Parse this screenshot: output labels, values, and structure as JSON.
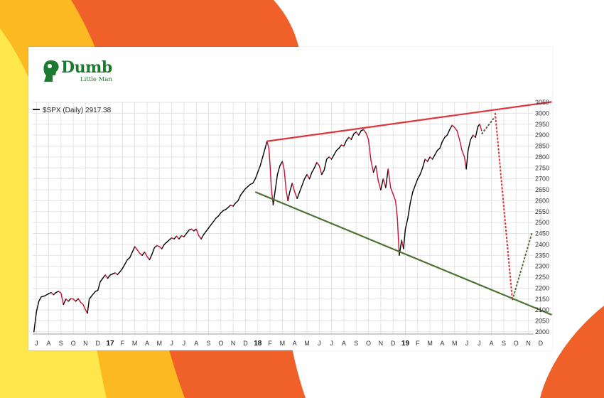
{
  "brand": {
    "name": "Dumb",
    "tagline": "Little Man",
    "color": "#1b7a2f"
  },
  "background_colors": {
    "orange": "#f0612a",
    "yellow": "#fbb922",
    "pale_yellow": "#fde74a"
  },
  "chart_data": {
    "type": "line",
    "legend": "$SPX (Daily) 2917.38",
    "legend_marker_color": "#222222",
    "y_axis": {
      "side": "right",
      "ticks": [
        3050,
        3000,
        2950,
        2900,
        2850,
        2800,
        2750,
        2700,
        2650,
        2600,
        2550,
        2500,
        2450,
        2400,
        2350,
        2300,
        2250,
        2200,
        2150,
        2100,
        2050,
        2000
      ],
      "ylim": [
        1990,
        3050
      ]
    },
    "x_axis": {
      "ticks": [
        {
          "label": "J",
          "t": 0.0,
          "bold": false
        },
        {
          "label": "A",
          "t": 1.0,
          "bold": false
        },
        {
          "label": "S",
          "t": 2.0,
          "bold": false
        },
        {
          "label": "O",
          "t": 3.0,
          "bold": false
        },
        {
          "label": "N",
          "t": 4.0,
          "bold": false
        },
        {
          "label": "D",
          "t": 5.0,
          "bold": false
        },
        {
          "label": "17",
          "t": 6.0,
          "bold": true
        },
        {
          "label": "F",
          "t": 7.0,
          "bold": false
        },
        {
          "label": "M",
          "t": 8.0,
          "bold": false
        },
        {
          "label": "A",
          "t": 9.0,
          "bold": false
        },
        {
          "label": "M",
          "t": 10.0,
          "bold": false
        },
        {
          "label": "J",
          "t": 11.0,
          "bold": false
        },
        {
          "label": "J",
          "t": 12.0,
          "bold": false
        },
        {
          "label": "A",
          "t": 13.0,
          "bold": false
        },
        {
          "label": "S",
          "t": 14.0,
          "bold": false
        },
        {
          "label": "O",
          "t": 15.0,
          "bold": false
        },
        {
          "label": "N",
          "t": 16.0,
          "bold": false
        },
        {
          "label": "D",
          "t": 17.0,
          "bold": false
        },
        {
          "label": "18",
          "t": 18.0,
          "bold": true
        },
        {
          "label": "F",
          "t": 19.0,
          "bold": false
        },
        {
          "label": "M",
          "t": 20.0,
          "bold": false
        },
        {
          "label": "A",
          "t": 21.0,
          "bold": false
        },
        {
          "label": "M",
          "t": 22.0,
          "bold": false
        },
        {
          "label": "J",
          "t": 23.0,
          "bold": false
        },
        {
          "label": "J",
          "t": 24.0,
          "bold": false
        },
        {
          "label": "A",
          "t": 25.0,
          "bold": false
        },
        {
          "label": "S",
          "t": 26.0,
          "bold": false
        },
        {
          "label": "O",
          "t": 27.0,
          "bold": false
        },
        {
          "label": "N",
          "t": 28.0,
          "bold": false
        },
        {
          "label": "D",
          "t": 29.0,
          "bold": false
        },
        {
          "label": "19",
          "t": 30.0,
          "bold": true
        },
        {
          "label": "F",
          "t": 31.0,
          "bold": false
        },
        {
          "label": "M",
          "t": 32.0,
          "bold": false
        },
        {
          "label": "A",
          "t": 33.0,
          "bold": false
        },
        {
          "label": "M",
          "t": 34.0,
          "bold": false
        },
        {
          "label": "J",
          "t": 35.0,
          "bold": false
        },
        {
          "label": "J",
          "t": 36.0,
          "bold": false
        },
        {
          "label": "A",
          "t": 37.0,
          "bold": false
        },
        {
          "label": "S",
          "t": 38.0,
          "bold": false
        },
        {
          "label": "O",
          "t": 39.0,
          "bold": false
        },
        {
          "label": "N",
          "t": 40.0,
          "bold": false
        },
        {
          "label": "D",
          "t": 41.0,
          "bold": false
        }
      ],
      "xlim": [
        -0.3,
        41.7
      ]
    },
    "grid": true,
    "series": [
      {
        "color": "#000000",
        "down_color": "#cc1133",
        "points": [
          [
            -0.2,
            2000
          ],
          [
            0.0,
            2090
          ],
          [
            0.2,
            2140
          ],
          [
            0.4,
            2160
          ],
          [
            0.7,
            2165
          ],
          [
            1.0,
            2175
          ],
          [
            1.2,
            2180
          ],
          [
            1.4,
            2170
          ],
          [
            1.6,
            2180
          ],
          [
            1.8,
            2185
          ],
          [
            2.0,
            2178
          ],
          [
            2.2,
            2125
          ],
          [
            2.4,
            2150
          ],
          [
            2.6,
            2140
          ],
          [
            2.8,
            2152
          ],
          [
            3.0,
            2150
          ],
          [
            3.2,
            2140
          ],
          [
            3.4,
            2152
          ],
          [
            3.6,
            2135
          ],
          [
            3.8,
            2125
          ],
          [
            4.0,
            2100
          ],
          [
            4.15,
            2085
          ],
          [
            4.3,
            2150
          ],
          [
            4.5,
            2165
          ],
          [
            4.8,
            2185
          ],
          [
            5.0,
            2190
          ],
          [
            5.2,
            2230
          ],
          [
            5.4,
            2245
          ],
          [
            5.6,
            2260
          ],
          [
            5.8,
            2245
          ],
          [
            6.0,
            2260
          ],
          [
            6.2,
            2265
          ],
          [
            6.4,
            2270
          ],
          [
            6.6,
            2262
          ],
          [
            6.8,
            2275
          ],
          [
            7.0,
            2290
          ],
          [
            7.2,
            2310
          ],
          [
            7.4,
            2330
          ],
          [
            7.6,
            2340
          ],
          [
            7.8,
            2365
          ],
          [
            8.0,
            2390
          ],
          [
            8.2,
            2375
          ],
          [
            8.4,
            2360
          ],
          [
            8.6,
            2350
          ],
          [
            8.8,
            2365
          ],
          [
            9.0,
            2345
          ],
          [
            9.2,
            2330
          ],
          [
            9.4,
            2355
          ],
          [
            9.6,
            2385
          ],
          [
            9.8,
            2395
          ],
          [
            10.0,
            2390
          ],
          [
            10.2,
            2380
          ],
          [
            10.4,
            2400
          ],
          [
            10.6,
            2410
          ],
          [
            10.8,
            2420
          ],
          [
            11.0,
            2430
          ],
          [
            11.2,
            2425
          ],
          [
            11.4,
            2438
          ],
          [
            11.6,
            2425
          ],
          [
            11.8,
            2440
          ],
          [
            12.0,
            2435
          ],
          [
            12.2,
            2450
          ],
          [
            12.4,
            2465
          ],
          [
            12.6,
            2470
          ],
          [
            12.8,
            2462
          ],
          [
            13.0,
            2470
          ],
          [
            13.2,
            2440
          ],
          [
            13.4,
            2425
          ],
          [
            13.6,
            2445
          ],
          [
            13.8,
            2460
          ],
          [
            14.0,
            2475
          ],
          [
            14.2,
            2490
          ],
          [
            14.4,
            2505
          ],
          [
            14.6,
            2520
          ],
          [
            14.8,
            2530
          ],
          [
            15.0,
            2545
          ],
          [
            15.2,
            2555
          ],
          [
            15.4,
            2560
          ],
          [
            15.6,
            2570
          ],
          [
            15.8,
            2580
          ],
          [
            16.0,
            2575
          ],
          [
            16.2,
            2590
          ],
          [
            16.4,
            2600
          ],
          [
            16.6,
            2625
          ],
          [
            16.8,
            2640
          ],
          [
            17.0,
            2655
          ],
          [
            17.2,
            2665
          ],
          [
            17.4,
            2675
          ],
          [
            17.6,
            2680
          ],
          [
            17.8,
            2700
          ],
          [
            18.0,
            2730
          ],
          [
            18.2,
            2760
          ],
          [
            18.4,
            2800
          ],
          [
            18.6,
            2840
          ],
          [
            18.75,
            2872
          ],
          [
            18.9,
            2840
          ],
          [
            19.0,
            2762
          ],
          [
            19.1,
            2660
          ],
          [
            19.25,
            2581
          ],
          [
            19.4,
            2640
          ],
          [
            19.6,
            2720
          ],
          [
            19.8,
            2760
          ],
          [
            20.0,
            2780
          ],
          [
            20.15,
            2740
          ],
          [
            20.3,
            2650
          ],
          [
            20.45,
            2600
          ],
          [
            20.6,
            2640
          ],
          [
            20.8,
            2680
          ],
          [
            21.0,
            2640
          ],
          [
            21.2,
            2610
          ],
          [
            21.4,
            2640
          ],
          [
            21.6,
            2670
          ],
          [
            21.8,
            2700
          ],
          [
            22.0,
            2720
          ],
          [
            22.2,
            2700
          ],
          [
            22.4,
            2730
          ],
          [
            22.6,
            2750
          ],
          [
            22.8,
            2775
          ],
          [
            23.0,
            2760
          ],
          [
            23.2,
            2720
          ],
          [
            23.4,
            2740
          ],
          [
            23.6,
            2790
          ],
          [
            23.8,
            2800
          ],
          [
            24.0,
            2790
          ],
          [
            24.2,
            2810
          ],
          [
            24.4,
            2830
          ],
          [
            24.6,
            2840
          ],
          [
            24.8,
            2855
          ],
          [
            25.0,
            2850
          ],
          [
            25.2,
            2875
          ],
          [
            25.4,
            2890
          ],
          [
            25.6,
            2880
          ],
          [
            25.8,
            2905
          ],
          [
            26.0,
            2915
          ],
          [
            26.2,
            2900
          ],
          [
            26.4,
            2920
          ],
          [
            26.6,
            2925
          ],
          [
            26.8,
            2910
          ],
          [
            27.0,
            2880
          ],
          [
            27.2,
            2785
          ],
          [
            27.4,
            2730
          ],
          [
            27.6,
            2760
          ],
          [
            27.8,
            2690
          ],
          [
            28.0,
            2650
          ],
          [
            28.2,
            2700
          ],
          [
            28.4,
            2660
          ],
          [
            28.6,
            2745
          ],
          [
            28.8,
            2660
          ],
          [
            29.0,
            2630
          ],
          [
            29.2,
            2600
          ],
          [
            29.35,
            2520
          ],
          [
            29.5,
            2350
          ],
          [
            29.7,
            2420
          ],
          [
            29.85,
            2380
          ],
          [
            30.0,
            2470
          ],
          [
            30.2,
            2520
          ],
          [
            30.4,
            2590
          ],
          [
            30.6,
            2640
          ],
          [
            30.8,
            2670
          ],
          [
            31.0,
            2700
          ],
          [
            31.2,
            2720
          ],
          [
            31.4,
            2750
          ],
          [
            31.6,
            2790
          ],
          [
            31.8,
            2780
          ],
          [
            32.0,
            2800
          ],
          [
            32.2,
            2790
          ],
          [
            32.4,
            2810
          ],
          [
            32.6,
            2830
          ],
          [
            32.8,
            2840
          ],
          [
            33.0,
            2870
          ],
          [
            33.2,
            2890
          ],
          [
            33.4,
            2900
          ],
          [
            33.6,
            2925
          ],
          [
            33.8,
            2945
          ],
          [
            34.0,
            2935
          ],
          [
            34.2,
            2920
          ],
          [
            34.4,
            2880
          ],
          [
            34.6,
            2830
          ],
          [
            34.8,
            2800
          ],
          [
            34.95,
            2745
          ],
          [
            35.1,
            2830
          ],
          [
            35.3,
            2880
          ],
          [
            35.5,
            2900
          ],
          [
            35.7,
            2890
          ],
          [
            35.9,
            2940
          ],
          [
            36.05,
            2950
          ],
          [
            36.2,
            2920
          ]
        ]
      }
    ],
    "annotations": {
      "upper_trendline": {
        "color": "#e0333a",
        "from": [
          18.75,
          2872
        ],
        "to": [
          41.9,
          3052
        ]
      },
      "lower_trendline": {
        "color": "#4f7232",
        "from": [
          17.8,
          2640
        ],
        "to": [
          41.9,
          2078
        ]
      },
      "projection_up": {
        "color": "#555555",
        "style": "dashed",
        "from": [
          36.2,
          2905
        ],
        "to": [
          37.3,
          2985
        ]
      },
      "projection_down": {
        "color": "#e0333a",
        "style": "dashed",
        "from": [
          37.3,
          3002
        ],
        "to": [
          38.7,
          2145
        ]
      },
      "projection_rebound": {
        "color": "#4f7232",
        "style": "dashed",
        "from": [
          38.7,
          2145
        ],
        "to": [
          40.3,
          2455
        ]
      }
    }
  }
}
